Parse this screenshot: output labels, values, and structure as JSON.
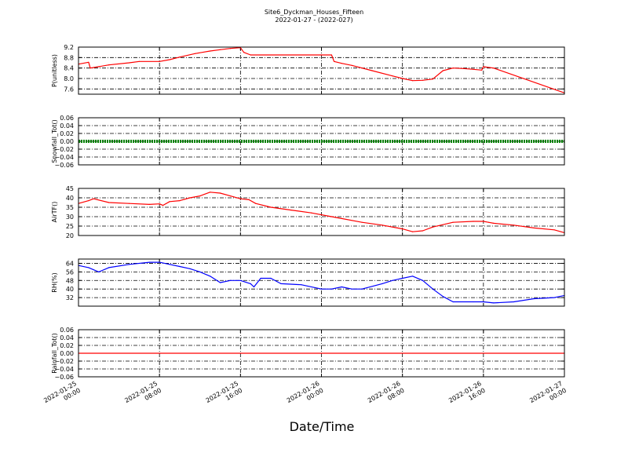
{
  "figure": {
    "title": "Site6_Dyckman_Houses_Fifteen",
    "subtitle": "2022-01-27 - (2022-027)",
    "xlabel": "Date/Time",
    "x_ticks": [
      "2022-01-25 00:00",
      "2022-01-25 08:00",
      "2022-01-25 16:00",
      "2022-01-26 00:00",
      "2022-01-26 08:00",
      "2022-01-26 16:00",
      "2022-01-27 00:00"
    ],
    "x_tick_lines": [
      [
        "2022-01-25",
        "00:00"
      ],
      [
        "2022-01-25",
        "08:00"
      ],
      [
        "2022-01-25",
        "16:00"
      ],
      [
        "2022-01-26",
        "00:00"
      ],
      [
        "2022-01-26",
        "08:00"
      ],
      [
        "2022-01-26",
        "16:00"
      ],
      [
        "2022-01-27",
        "00:00"
      ]
    ],
    "xlim": [
      "2022-01-25 00:00",
      "2022-01-27 00:00"
    ]
  },
  "chart_data": [
    {
      "type": "line",
      "ylabel": "P(unitless)",
      "ylim": [
        7.4,
        9.2
      ],
      "yticks": [
        "9.2",
        "8.8",
        "8.4",
        "8.0",
        "7.6"
      ],
      "ytick_values": [
        9.2,
        8.8,
        8.4,
        8.0,
        7.6
      ],
      "color": "#ff0000",
      "grid": true,
      "x": [
        "2022-01-25 00:00",
        "2022-01-25 01:00",
        "2022-01-25 01:10",
        "2022-01-25 01:30",
        "2022-01-25 03:00",
        "2022-01-25 05:00",
        "2022-01-25 06:00",
        "2022-01-25 08:00",
        "2022-01-25 09:00",
        "2022-01-25 10:00",
        "2022-01-25 11:30",
        "2022-01-25 13:00",
        "2022-01-25 14:00",
        "2022-01-25 15:00",
        "2022-01-25 16:00",
        "2022-01-25 16:20",
        "2022-01-25 17:00",
        "2022-01-26 00:00",
        "2022-01-26 01:00",
        "2022-01-26 01:15",
        "2022-01-26 02:00",
        "2022-01-26 03:00",
        "2022-01-26 05:00",
        "2022-01-26 07:00",
        "2022-01-26 08:00",
        "2022-01-26 09:00",
        "2022-01-26 10:00",
        "2022-01-26 11:00",
        "2022-01-26 12:00",
        "2022-01-26 13:00",
        "2022-01-26 14:00",
        "2022-01-26 15:00",
        "2022-01-26 15:50",
        "2022-01-26 16:00",
        "2022-01-26 17:00",
        "2022-01-27 00:00"
      ],
      "values": [
        8.55,
        8.62,
        8.4,
        8.42,
        8.52,
        8.6,
        8.65,
        8.65,
        8.72,
        8.82,
        8.95,
        9.05,
        9.1,
        9.15,
        9.18,
        9.0,
        8.9,
        8.9,
        8.9,
        8.65,
        8.58,
        8.5,
        8.3,
        8.1,
        8.0,
        7.92,
        7.93,
        7.98,
        8.3,
        8.4,
        8.38,
        8.35,
        8.32,
        8.45,
        8.4,
        7.45
      ]
    },
    {
      "type": "line",
      "ylabel": "Snowfall_Tot()",
      "ylim": [
        -0.06,
        0.06
      ],
      "yticks": [
        "0.06",
        "0.04",
        "0.02",
        "0.00",
        "−0.02",
        "−0.04",
        "−0.06"
      ],
      "ytick_values": [
        0.06,
        0.04,
        0.02,
        0.0,
        -0.02,
        -0.04,
        -0.06
      ],
      "color": "#008000",
      "line_width": 4,
      "dashed": true,
      "grid": true,
      "x": [
        "2022-01-25 00:00",
        "2022-01-27 00:00"
      ],
      "values": [
        0.0,
        0.0
      ]
    },
    {
      "type": "line",
      "ylabel": "AirTF()",
      "ylim": [
        20,
        45
      ],
      "yticks": [
        "45",
        "40",
        "35",
        "30",
        "25",
        "20"
      ],
      "ytick_values": [
        45,
        40,
        35,
        30,
        25,
        20
      ],
      "color": "#ff0000",
      "grid": true,
      "x": [
        "2022-01-25 00:00",
        "2022-01-25 01:00",
        "2022-01-25 01:30",
        "2022-01-25 03:00",
        "2022-01-25 05:00",
        "2022-01-25 07:00",
        "2022-01-25 08:00",
        "2022-01-25 08:20",
        "2022-01-25 09:00",
        "2022-01-25 10:00",
        "2022-01-25 11:00",
        "2022-01-25 12:00",
        "2022-01-25 13:00",
        "2022-01-25 14:00",
        "2022-01-25 15:00",
        "2022-01-25 16:00",
        "2022-01-25 16:50",
        "2022-01-25 17:30",
        "2022-01-25 19:00",
        "2022-01-25 21:00",
        "2022-01-25 23:00",
        "2022-01-26 01:00",
        "2022-01-26 02:00",
        "2022-01-26 04:00",
        "2022-01-26 06:00",
        "2022-01-26 07:30",
        "2022-01-26 08:00",
        "2022-01-26 09:00",
        "2022-01-26 10:00",
        "2022-01-26 11:00",
        "2022-01-26 13:00",
        "2022-01-26 15:00",
        "2022-01-26 16:00",
        "2022-01-26 16:30",
        "2022-01-26 17:00",
        "2022-01-26 19:00",
        "2022-01-26 21:00",
        "2022-01-26 23:00",
        "2022-01-27 00:00"
      ],
      "values": [
        37,
        38.5,
        39.5,
        37.5,
        37,
        36.5,
        36.8,
        36,
        38,
        38.5,
        40,
        41,
        43,
        42.5,
        41,
        39.5,
        39,
        37,
        35,
        33.5,
        32,
        30,
        29,
        27,
        25.5,
        24,
        23.5,
        22,
        22.5,
        24.5,
        27,
        27.5,
        27.5,
        27,
        26.5,
        25.5,
        24,
        23,
        21.5
      ]
    },
    {
      "type": "line",
      "ylabel": "RH(%)",
      "ylim": [
        24,
        68
      ],
      "yticks": [
        "64",
        "56",
        "48",
        "40",
        "32"
      ],
      "ytick_values": [
        64,
        56,
        48,
        40,
        32
      ],
      "color": "#0000ff",
      "grid": true,
      "x": [
        "2022-01-25 00:00",
        "2022-01-25 01:00",
        "2022-01-25 02:00",
        "2022-01-25 03:00",
        "2022-01-25 05:00",
        "2022-01-25 07:00",
        "2022-01-25 08:00",
        "2022-01-25 09:00",
        "2022-01-25 10:00",
        "2022-01-25 11:00",
        "2022-01-25 12:00",
        "2022-01-25 13:00",
        "2022-01-25 14:00",
        "2022-01-25 15:00",
        "2022-01-25 16:00",
        "2022-01-25 17:00",
        "2022-01-25 17:20",
        "2022-01-25 18:00",
        "2022-01-25 19:00",
        "2022-01-25 20:00",
        "2022-01-25 22:00",
        "2022-01-26 00:00",
        "2022-01-26 01:00",
        "2022-01-26 02:00",
        "2022-01-26 03:00",
        "2022-01-26 04:00",
        "2022-01-26 06:00",
        "2022-01-26 07:00",
        "2022-01-26 08:00",
        "2022-01-26 09:00",
        "2022-01-26 10:00",
        "2022-01-26 11:00",
        "2022-01-26 12:00",
        "2022-01-26 13:00",
        "2022-01-26 15:00",
        "2022-01-26 16:00",
        "2022-01-26 17:00",
        "2022-01-26 19:00",
        "2022-01-26 21:00",
        "2022-01-26 23:00",
        "2022-01-27 00:00"
      ],
      "values": [
        62,
        60,
        56,
        60,
        63,
        65,
        65,
        63,
        61,
        59,
        56,
        52,
        46,
        48,
        48,
        45,
        42,
        50,
        50,
        45,
        44,
        40,
        40,
        42,
        40,
        40,
        45,
        48,
        50,
        52,
        48,
        40,
        33,
        28,
        28,
        28,
        27,
        28,
        31,
        32,
        34
      ]
    },
    {
      "type": "line",
      "ylabel": "Rainfall_Tot()",
      "ylim": [
        -0.06,
        0.06
      ],
      "yticks": [
        "0.06",
        "0.04",
        "0.02",
        "0.00",
        "−0.02",
        "−0.04",
        "−0.06"
      ],
      "ytick_values": [
        0.06,
        0.04,
        0.02,
        0.0,
        -0.02,
        -0.04,
        -0.06
      ],
      "color": "#ff0000",
      "grid": true,
      "x": [
        "2022-01-25 00:00",
        "2022-01-27 00:00"
      ],
      "values": [
        0.0,
        0.0
      ]
    }
  ]
}
